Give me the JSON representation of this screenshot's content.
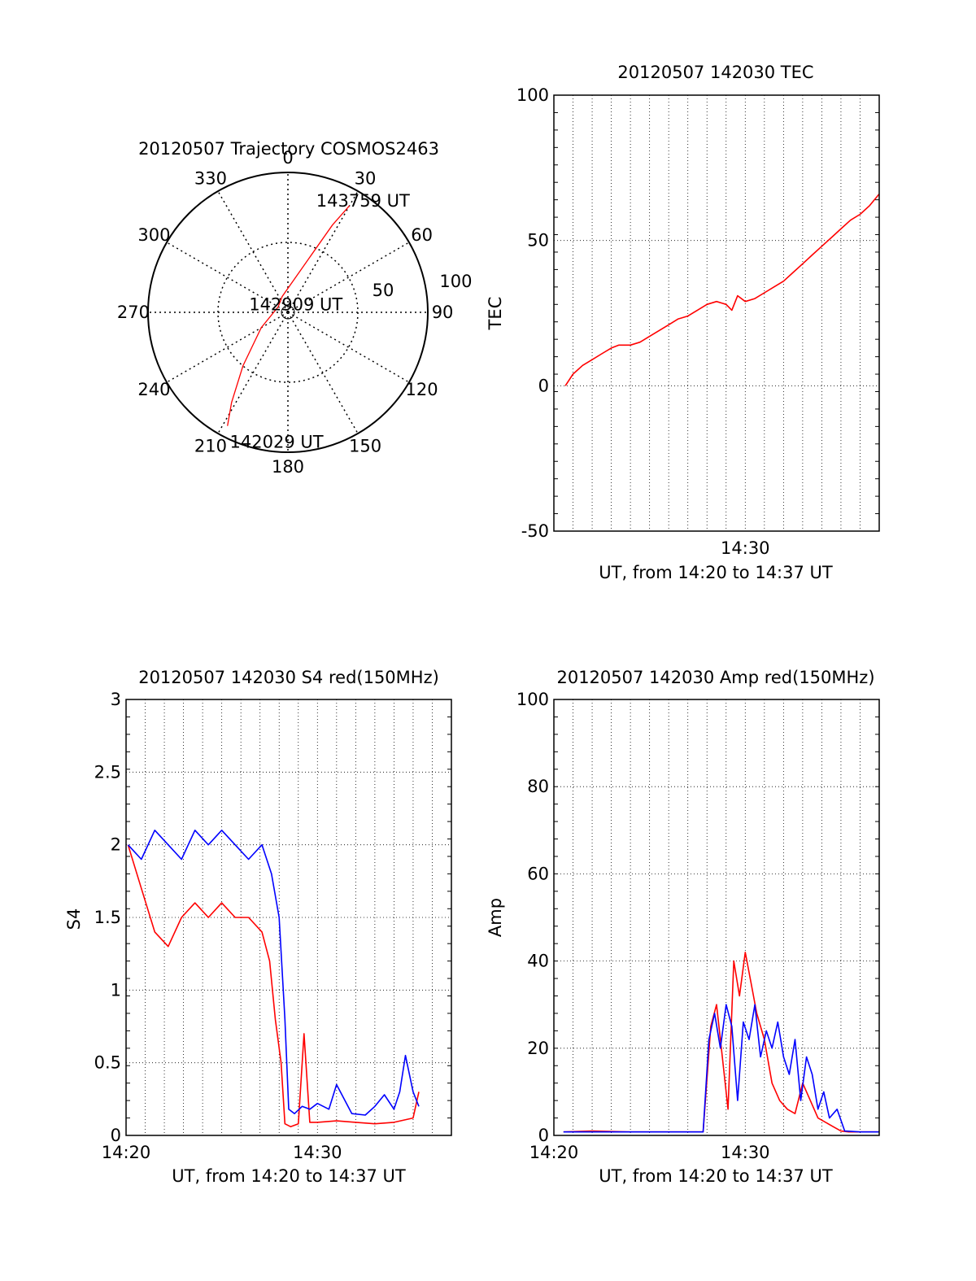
{
  "figure": {
    "colors": {
      "red": "#ff0000",
      "blue": "#0000ff",
      "axis": "#000000",
      "grid": "#000000"
    }
  },
  "chart_data": [
    {
      "type": "polar",
      "panel": "polar",
      "title": "20120507 Trajectory COSMOS2463",
      "angle_labels": [
        "0",
        "30",
        "60",
        "90",
        "120",
        "150",
        "180",
        "210",
        "240",
        "270",
        "300",
        "330"
      ],
      "radial_labels": [
        "50",
        "100"
      ],
      "radial_values": [
        50,
        100
      ],
      "rmax": 100,
      "rmin_inner": 0,
      "series": [
        {
          "color": "#ff0000",
          "points": [
            {
              "az": 208,
              "r": 92
            },
            {
              "az": 212,
              "r": 76
            },
            {
              "az": 220,
              "r": 50
            },
            {
              "az": 240,
              "r": 22
            },
            {
              "az": 300,
              "r": 8
            },
            {
              "az": 340,
              "r": 12
            },
            {
              "az": 20,
              "r": 38
            },
            {
              "az": 27,
              "r": 70
            },
            {
              "az": 30,
              "r": 88
            }
          ]
        }
      ],
      "annotations": [
        {
          "text": "143759 UT",
          "az": 34,
          "r": 96
        },
        {
          "text": "142909 UT",
          "az": 45,
          "r": 8
        },
        {
          "text": "142029 UT",
          "az": 185,
          "r": 93
        }
      ]
    },
    {
      "type": "line",
      "panel": "tec",
      "title": "20120507 142030 TEC",
      "ylabel": "TEC",
      "xlabel": "UT, from 14:20 to 14:37 UT",
      "xlim": [
        0,
        17
      ],
      "ylim": [
        -50,
        100
      ],
      "yticks": [
        -50,
        0,
        50,
        100
      ],
      "xticks": [
        {
          "value": 10,
          "label": "14:30"
        }
      ],
      "grid": true,
      "series": [
        {
          "color": "#ff0000",
          "x": [
            0.6,
            1.0,
            1.5,
            2.0,
            2.5,
            3.0,
            3.4,
            4.0,
            4.5,
            5.0,
            5.5,
            6.0,
            6.5,
            7.0,
            7.5,
            8.0,
            8.5,
            9.0,
            9.3,
            9.6,
            10.0,
            10.5,
            11.0,
            11.5,
            12.0,
            12.5,
            13.0,
            13.5,
            14.0,
            14.5,
            15.0,
            15.5,
            16.0,
            16.5,
            17.0
          ],
          "y": [
            0,
            4,
            7,
            9,
            11,
            13,
            14,
            14,
            15,
            17,
            19,
            21,
            23,
            24,
            26,
            28,
            29,
            28,
            26,
            31,
            29,
            30,
            32,
            34,
            36,
            39,
            42,
            45,
            48,
            51,
            54,
            57,
            59,
            62,
            66
          ]
        }
      ]
    },
    {
      "type": "line",
      "panel": "s4",
      "title": "20120507 142030 S4 red(150MHz)",
      "ylabel": "S4",
      "xlabel": "UT, from 14:20 to 14:37 UT",
      "xlim": [
        0,
        17
      ],
      "ylim": [
        0,
        3
      ],
      "yticks": [
        0,
        0.5,
        1,
        1.5,
        2,
        2.5,
        3
      ],
      "ytick_labels": [
        "0",
        "0.5",
        "1",
        "1.5",
        "2",
        "2.5",
        "3"
      ],
      "xticks": [
        {
          "value": 0,
          "label": "14:20"
        },
        {
          "value": 10,
          "label": "14:30"
        }
      ],
      "grid": true,
      "series": [
        {
          "color": "#ff0000",
          "x": [
            0.1,
            0.8,
            1.5,
            2.2,
            2.9,
            3.6,
            4.3,
            5.0,
            5.7,
            6.4,
            7.1,
            7.5,
            7.8,
            8.1,
            8.3,
            8.6,
            9.0,
            9.3,
            9.6,
            10.0,
            11.0,
            12.0,
            13.0,
            14.0,
            15.0,
            15.3
          ],
          "y": [
            2.0,
            1.7,
            1.4,
            1.3,
            1.5,
            1.6,
            1.5,
            1.6,
            1.5,
            1.5,
            1.4,
            1.2,
            0.8,
            0.5,
            0.08,
            0.06,
            0.08,
            0.7,
            0.09,
            0.09,
            0.1,
            0.09,
            0.08,
            0.09,
            0.12,
            0.3
          ]
        },
        {
          "color": "#0000ff",
          "x": [
            0.1,
            0.8,
            1.5,
            2.2,
            2.9,
            3.6,
            4.3,
            5.0,
            5.7,
            6.4,
            7.1,
            7.6,
            8.0,
            8.3,
            8.5,
            8.8,
            9.2,
            9.6,
            10.0,
            10.6,
            11.0,
            11.8,
            12.5,
            13.0,
            13.5,
            14.0,
            14.3,
            14.6,
            15.0,
            15.3
          ],
          "y": [
            2.0,
            1.9,
            2.1,
            2.0,
            1.9,
            2.1,
            2.0,
            2.1,
            2.0,
            1.9,
            2.0,
            1.8,
            1.5,
            0.8,
            0.18,
            0.15,
            0.2,
            0.18,
            0.22,
            0.18,
            0.35,
            0.15,
            0.14,
            0.2,
            0.28,
            0.18,
            0.3,
            0.55,
            0.3,
            0.2
          ]
        }
      ]
    },
    {
      "type": "line",
      "panel": "amp",
      "title": "20120507 142030 Amp red(150MHz)",
      "ylabel": "Amp",
      "xlabel": "UT, from 14:20 to 14:37 UT",
      "xlim": [
        0,
        17
      ],
      "ylim": [
        0,
        100
      ],
      "yticks": [
        0,
        20,
        40,
        60,
        80,
        100
      ],
      "xticks": [
        {
          "value": 0,
          "label": "14:20"
        },
        {
          "value": 10,
          "label": "14:30"
        }
      ],
      "grid": true,
      "series": [
        {
          "color": "#ff0000",
          "x": [
            0.5,
            2.0,
            4.0,
            6.0,
            7.8,
            8.2,
            8.5,
            8.8,
            9.1,
            9.4,
            9.7,
            10.0,
            10.3,
            10.6,
            11.0,
            11.4,
            11.8,
            12.2,
            12.6,
            13.0,
            13.4,
            13.8,
            14.2,
            14.6,
            15.0,
            15.4,
            16.0,
            17.0
          ],
          "y": [
            0.8,
            1.0,
            0.8,
            0.8,
            0.8,
            25,
            30,
            18,
            6,
            40,
            32,
            42,
            35,
            28,
            22,
            12,
            8,
            6,
            5,
            12,
            8,
            4,
            3,
            2,
            1,
            0.8,
            0.8,
            0.8
          ]
        },
        {
          "color": "#0000ff",
          "x": [
            0.5,
            2.0,
            4.0,
            6.0,
            7.8,
            8.1,
            8.4,
            8.7,
            9.0,
            9.3,
            9.6,
            9.9,
            10.2,
            10.5,
            10.8,
            11.1,
            11.4,
            11.7,
            12.0,
            12.3,
            12.6,
            12.9,
            13.2,
            13.5,
            13.8,
            14.1,
            14.4,
            14.8,
            15.2,
            16.0,
            17.0
          ],
          "y": [
            0.8,
            0.8,
            0.8,
            0.8,
            0.8,
            22,
            28,
            20,
            30,
            25,
            8,
            26,
            22,
            30,
            18,
            24,
            20,
            26,
            18,
            14,
            22,
            8,
            18,
            14,
            6,
            10,
            4,
            6,
            1,
            0.8,
            0.8
          ]
        }
      ]
    }
  ]
}
